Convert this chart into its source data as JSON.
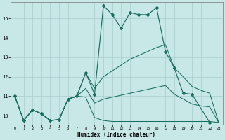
{
  "xlabel": "Humidex (Indice chaleur)",
  "background_color": "#c8e8e8",
  "grid_color": "#a8cccc",
  "line_color": "#1a6e60",
  "xlim": [
    -0.5,
    23.5
  ],
  "ylim": [
    9.55,
    15.85
  ],
  "yticks": [
    10,
    11,
    12,
    13,
    14,
    15
  ],
  "xticks": [
    0,
    1,
    2,
    3,
    4,
    5,
    6,
    7,
    8,
    9,
    10,
    11,
    12,
    13,
    14,
    15,
    16,
    17,
    18,
    19,
    20,
    21,
    22,
    23
  ],
  "main_x": [
    0,
    1,
    2,
    3,
    4,
    5,
    6,
    7,
    8,
    9,
    10,
    11,
    12,
    13,
    14,
    15,
    16,
    17,
    18,
    19,
    20,
    22
  ],
  "main_y": [
    11.0,
    9.75,
    10.3,
    10.1,
    9.75,
    9.8,
    10.85,
    11.0,
    12.2,
    11.1,
    15.65,
    15.2,
    14.5,
    15.3,
    15.2,
    15.2,
    15.55,
    13.3,
    12.45,
    11.15,
    11.1,
    9.65
  ],
  "min_x": [
    0,
    1,
    2,
    3,
    4,
    5,
    6,
    7,
    8,
    9,
    10,
    11,
    12,
    13,
    14,
    15,
    16,
    17,
    18,
    19,
    20,
    21,
    22,
    23
  ],
  "min_y": [
    11.0,
    9.75,
    10.3,
    10.1,
    9.75,
    9.8,
    10.85,
    11.0,
    10.95,
    9.9,
    9.75,
    9.7,
    9.7,
    9.7,
    9.7,
    9.7,
    9.7,
    9.7,
    9.7,
    9.7,
    9.7,
    9.7,
    9.7,
    9.65
  ],
  "max_x": [
    0,
    1,
    2,
    3,
    4,
    5,
    6,
    7,
    8,
    9,
    10,
    11,
    12,
    13,
    14,
    15,
    16,
    17,
    18,
    19,
    20,
    21,
    22,
    23
  ],
  "max_y": [
    11.0,
    9.75,
    10.3,
    10.1,
    9.75,
    9.8,
    10.85,
    11.0,
    12.2,
    11.4,
    12.0,
    12.3,
    12.6,
    12.9,
    13.1,
    13.3,
    13.5,
    13.65,
    12.45,
    12.0,
    11.5,
    11.3,
    11.15,
    9.65
  ],
  "avg_x": [
    0,
    1,
    2,
    3,
    4,
    5,
    6,
    7,
    8,
    9,
    10,
    11,
    12,
    13,
    14,
    15,
    16,
    17,
    18,
    19,
    20,
    21,
    22,
    23
  ],
  "avg_y": [
    11.0,
    9.75,
    10.3,
    10.1,
    9.75,
    9.8,
    10.85,
    11.0,
    11.4,
    10.65,
    10.85,
    10.95,
    11.05,
    11.15,
    11.25,
    11.35,
    11.45,
    11.55,
    11.1,
    10.85,
    10.6,
    10.5,
    10.45,
    9.65
  ]
}
